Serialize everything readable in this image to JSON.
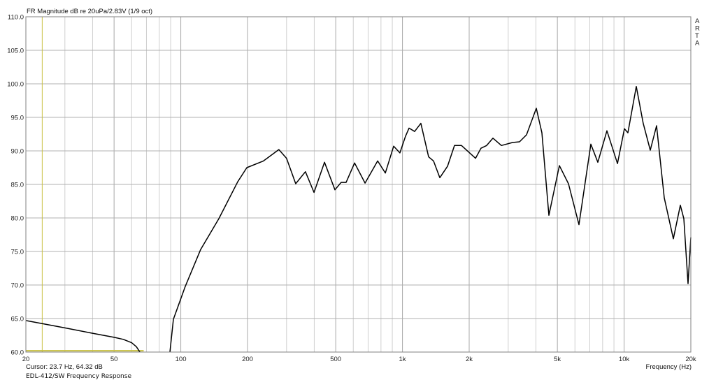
{
  "chart_data": {
    "type": "line",
    "title": "FR Magnitude dB re 20uPa/2.83V (1/9 oct)",
    "xlabel": "Frequency (Hz)",
    "ylabel": "",
    "xscale": "log",
    "xlim": [
      20,
      20000
    ],
    "ylim": [
      60,
      110
    ],
    "grid": true,
    "x_tick_labels": [
      {
        "v": 20,
        "t": "20"
      },
      {
        "v": 50,
        "t": "50"
      },
      {
        "v": 100,
        "t": "100"
      },
      {
        "v": 200,
        "t": "200"
      },
      {
        "v": 500,
        "t": "500"
      },
      {
        "v": 1000,
        "t": "1k"
      },
      {
        "v": 2000,
        "t": "2k"
      },
      {
        "v": 5000,
        "t": "5k"
      },
      {
        "v": 10000,
        "t": "10k"
      },
      {
        "v": 20000,
        "t": "20k"
      }
    ],
    "y_tick_labels": [
      "60.0",
      "65.0",
      "70.0",
      "75.0",
      "80.0",
      "85.0",
      "90.0",
      "95.0",
      "100.0",
      "105.0",
      "110.0"
    ],
    "series": [
      {
        "color": "#000000",
        "segments": [
          [
            [
              20,
              64.7
            ],
            [
              30,
              63.6
            ],
            [
              40,
              62.8
            ],
            [
              50,
              62.2
            ],
            [
              55,
              61.9
            ],
            [
              60,
              61.4
            ],
            [
              63,
              60.8
            ],
            [
              65.4,
              60.0
            ]
          ],
          [
            [
              89.3,
              60.0
            ],
            [
              92.6,
              64.9
            ],
            [
              104.8,
              69.8
            ],
            [
              122.9,
              75.3
            ],
            [
              148.5,
              79.9
            ],
            [
              180.6,
              85.4
            ],
            [
              198.5,
              87.5
            ],
            [
              236,
              88.5
            ],
            [
              277,
              90.2
            ],
            [
              300,
              88.9
            ],
            [
              330,
              85.1
            ],
            [
              365,
              86.9
            ],
            [
              399,
              83.8
            ],
            [
              445,
              88.3
            ],
            [
              496,
              84.2
            ],
            [
              529,
              85.3
            ],
            [
              557,
              85.3
            ],
            [
              608,
              88.2
            ],
            [
              678,
              85.2
            ],
            [
              773,
              88.5
            ],
            [
              837,
              86.7
            ],
            [
              913,
              90.7
            ],
            [
              974,
              89.7
            ],
            [
              1033,
              92.2
            ],
            [
              1071,
              93.4
            ],
            [
              1135,
              92.9
            ],
            [
              1211,
              94.1
            ],
            [
              1312,
              89.1
            ],
            [
              1381,
              88.5
            ],
            [
              1474,
              86.0
            ],
            [
              1597,
              87.7
            ],
            [
              1717,
              90.8
            ],
            [
              1846,
              90.8
            ],
            [
              2136,
              88.9
            ],
            [
              2262,
              90.4
            ],
            [
              2398,
              90.8
            ],
            [
              2561,
              91.9
            ],
            [
              2795,
              90.8
            ],
            [
              3137,
              91.25
            ],
            [
              3373,
              91.35
            ],
            [
              3628,
              92.4
            ],
            [
              4018,
              96.35
            ],
            [
              4258,
              92.7
            ],
            [
              4577,
              80.4
            ],
            [
              5105,
              87.8
            ],
            [
              5610,
              85.1
            ],
            [
              6257,
              79.0
            ],
            [
              7080,
              91.0
            ],
            [
              7612,
              88.3
            ],
            [
              8366,
              93.0
            ],
            [
              9333,
              88.1
            ],
            [
              10030,
              93.3
            ],
            [
              10400,
              92.7
            ],
            [
              11350,
              99.6
            ],
            [
              12200,
              94.1
            ],
            [
              13120,
              90.1
            ],
            [
              14010,
              93.75
            ],
            [
              15180,
              83.0
            ],
            [
              16680,
              76.9
            ],
            [
              17940,
              81.9
            ],
            [
              18600,
              79.9
            ],
            [
              19430,
              70.2
            ],
            [
              20000,
              77.1
            ]
          ]
        ]
      }
    ],
    "cursor": {
      "freq": 23.7,
      "level": 60.2,
      "color": "#c8c040"
    },
    "cursor_readout": "Cursor: 23.7 Hz, 64.32 dB",
    "footer": "EDL-412/SW Frequency Response",
    "watermark": "ARTA",
    "colors": {
      "grid": "#c0c0c0",
      "axis": "#808080",
      "curve": "#000000",
      "cursor": "#c8c040"
    }
  }
}
